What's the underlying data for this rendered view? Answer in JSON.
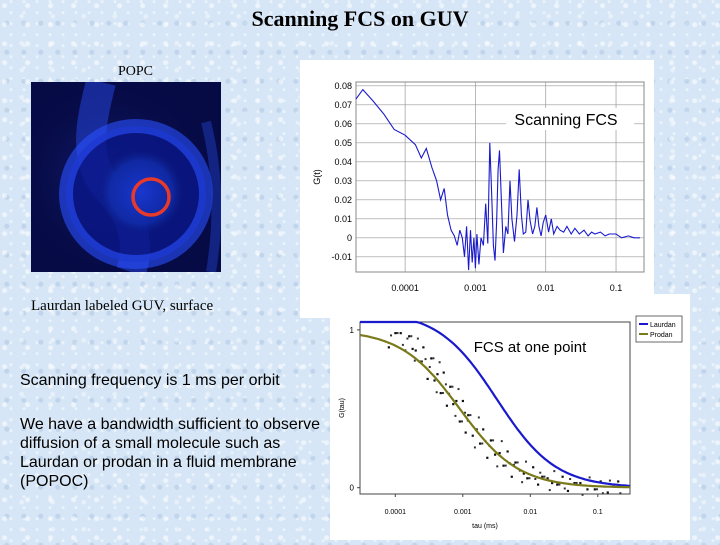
{
  "slide": {
    "title": "Scanning FCS on GUV",
    "popc_label": "POPC",
    "image_caption": "Laurdan labeled GUV, surface",
    "scan_freq_text": "Scanning frequency is 1 ms per orbit",
    "bandwidth_text": "We have a bandwidth sufficient to observe diffusion of a small molecule such as Laurdan or prodan in a fluid membrane (POPOC)"
  },
  "colors": {
    "circle": "#e83a2a",
    "trace": "#1a1acc",
    "laurdan": "#1a1acc",
    "prodan": "#7a7a1a"
  },
  "chart_data": [
    {
      "type": "line",
      "title": "Scanning FCS",
      "ylabel": "G(t)",
      "xscale": "log",
      "xlim": [
        2e-05,
        0.25
      ],
      "ylim": [
        -0.018,
        0.082
      ],
      "yticks": [
        -0.01,
        0,
        0.01,
        0.02,
        0.03,
        0.04,
        0.05,
        0.06,
        0.07,
        0.08
      ],
      "ytick_labels": [
        "-0.01",
        "0",
        "0.01",
        "0.02",
        "0.03",
        "0.04",
        "0.05",
        "0.06",
        "0.07",
        "0.08"
      ],
      "xticks": [
        0.0001,
        0.001,
        0.01,
        0.1
      ],
      "xtick_labels": [
        "0.0001",
        "0.001",
        "0.01",
        "0.1"
      ],
      "series": [
        {
          "x": [
            2e-05,
            2.5e-05,
            3.5e-05,
            5e-05,
            7e-05,
            0.0001,
            0.00014,
            0.00017,
            0.0002,
            0.00024,
            0.00028,
            0.00032,
            0.00036,
            0.0004,
            0.00045,
            0.0005,
            0.00055,
            0.0006,
            0.00065,
            0.0007,
            0.00075,
            0.0008,
            0.00085,
            0.0009,
            0.00095,
            0.001,
            0.00105,
            0.00112,
            0.0012,
            0.0013,
            0.0014,
            0.0015,
            0.0016,
            0.0017,
            0.0018,
            0.0019,
            0.002,
            0.0021,
            0.0022,
            0.00235,
            0.0025,
            0.0027,
            0.0029,
            0.0031,
            0.0033,
            0.0036,
            0.0039,
            0.0042,
            0.0045,
            0.0048,
            0.0052,
            0.0056,
            0.006,
            0.0065,
            0.007,
            0.0075,
            0.008,
            0.0086,
            0.0092,
            0.01,
            0.011,
            0.012,
            0.013,
            0.0145,
            0.016,
            0.018,
            0.02,
            0.023,
            0.026,
            0.03,
            0.035,
            0.04,
            0.045,
            0.05,
            0.06,
            0.07,
            0.08,
            0.1,
            0.12,
            0.15,
            0.18,
            0.22
          ],
          "y": [
            0.073,
            0.078,
            0.072,
            0.065,
            0.057,
            0.054,
            0.049,
            0.042,
            0.047,
            0.037,
            0.03,
            0.02,
            0.026,
            0.012,
            0.004,
            0.001,
            -0.004,
            0.004,
            0.0,
            -0.01,
            0.006,
            -0.017,
            0.004,
            -0.013,
            0.0,
            -0.016,
            0.002,
            -0.014,
            0.0,
            -0.004,
            0.018,
            -0.003,
            0.05,
            0.024,
            -0.004,
            -0.012,
            0.008,
            0.036,
            0.046,
            0.018,
            -0.008,
            0.006,
            0.002,
            0.03,
            0.01,
            -0.002,
            0.012,
            0.036,
            0.012,
            0.002,
            0.003,
            0.02,
            0.009,
            0.002,
            0.006,
            0.016,
            0.006,
            0.001,
            0.008,
            0.012,
            0.003,
            0.01,
            0.002,
            0.006,
            0.004,
            0.003,
            0.006,
            0.002,
            0.005,
            0.002,
            0.004,
            0.001,
            0.003,
            0.002,
            0.003,
            0.001,
            0.002,
            0.002,
            0.0,
            0.001,
            0.0,
            0.0
          ]
        }
      ]
    },
    {
      "type": "scatter",
      "title": "FCS at one point",
      "ylabel": "G(tau)",
      "xlabel": "tau (ms)",
      "xscale": "log",
      "xlim": [
        3e-05,
        0.3
      ],
      "ylim": [
        -0.04,
        1.05
      ],
      "yticks": [
        0,
        1
      ],
      "ytick_labels": [
        "0",
        "1"
      ],
      "xticks": [
        0.0001,
        0.001,
        0.01,
        0.1
      ],
      "xtick_labels": [
        "0.0001",
        "0.001",
        "0.01",
        "0.1"
      ],
      "legend": {
        "position": "top-right",
        "entries": [
          "Laurdan",
          "Prodan"
        ]
      },
      "series": [
        {
          "name": "Laurdan",
          "tau": 0.0032,
          "amplitude": 1.12
        },
        {
          "name": "Prodan",
          "tau": 0.0009,
          "amplitude": 1.0
        }
      ],
      "scatter_x": [
        8e-05,
        0.0001,
        0.00012,
        0.00014,
        0.00016,
        0.00018,
        0.0002,
        0.00023,
        0.00026,
        0.0003,
        0.00034,
        0.00038,
        0.00042,
        0.00047,
        0.00052,
        0.00058,
        0.00065,
        0.00072,
        0.0008,
        0.0009,
        0.001,
        0.0011,
        0.0012,
        0.0014,
        0.0016,
        0.0018,
        0.002,
        0.0023,
        0.0026,
        0.003,
        0.0035,
        0.004,
        0.0046,
        0.0053,
        0.006,
        0.007,
        0.008,
        0.009,
        0.011,
        0.013,
        0.015,
        0.018,
        0.021,
        0.025,
        0.03,
        0.036,
        0.045,
        0.055,
        0.07,
        0.09,
        0.11,
        0.14,
        0.17,
        0.2
      ],
      "scatter_y": [
        0.92,
        0.98,
        0.95,
        0.9,
        0.96,
        0.85,
        0.9,
        0.8,
        0.86,
        0.72,
        0.82,
        0.65,
        0.75,
        0.6,
        0.7,
        0.55,
        0.64,
        0.5,
        0.58,
        0.42,
        0.52,
        0.38,
        0.46,
        0.3,
        0.4,
        0.28,
        0.34,
        0.22,
        0.3,
        0.18,
        0.25,
        0.14,
        0.2,
        0.1,
        0.16,
        0.08,
        0.12,
        0.06,
        0.1,
        0.05,
        0.07,
        0.03,
        0.06,
        0.02,
        0.04,
        0.01,
        0.03,
        0.0,
        0.02,
        -0.01,
        0.01,
        0.0,
        0.02,
        0.01
      ]
    }
  ]
}
